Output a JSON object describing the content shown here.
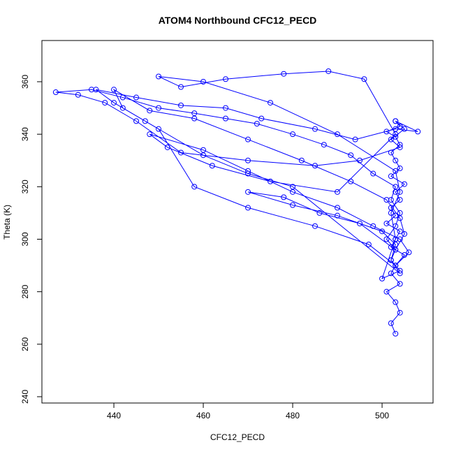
{
  "chart_data": {
    "type": "line",
    "title": "ATOM4 Northbound CFC12_PECD",
    "x_label": "CFC12_PECD",
    "y_label": "Theta (K)",
    "xlim": [
      423.9,
      511.4
    ],
    "ylim": [
      237.6,
      375.7
    ],
    "xticks": [
      440,
      460,
      480,
      500
    ],
    "yticks": [
      240,
      260,
      280,
      300,
      320,
      340,
      360
    ],
    "series": [
      {
        "color": "#0000ff",
        "x": [
          503,
          502,
          504,
          503,
          501,
          504,
          502,
          503,
          505,
          502,
          503,
          504,
          501,
          503,
          502,
          504,
          503,
          505,
          502,
          504,
          503,
          502,
          504,
          503,
          501,
          504,
          503,
          505,
          502,
          504,
          495,
          485,
          470,
          455,
          445,
          438,
          432,
          427,
          435,
          442,
          450,
          458,
          465,
          472,
          480,
          487,
          493,
          498,
          503,
          502,
          504,
          503,
          501,
          503,
          502,
          504,
          500,
          503,
          502,
          504,
          503,
          490,
          475,
          460,
          450,
          455,
          465,
          478,
          488,
          496,
          503,
          490,
          475,
          462,
          452,
          448,
          460,
          470,
          480,
          490,
          498,
          504,
          506,
          503,
          497,
          485,
          470,
          458,
          450,
          442,
          440,
          448,
          458,
          470,
          482,
          493,
          501,
          504,
          505,
          503,
          495,
          486,
          478,
          470,
          480,
          490,
          500,
          503,
          502,
          504,
          480,
          470,
          460,
          447,
          440,
          436,
          445,
          455,
          465,
          473,
          485,
          494,
          503,
          508,
          503
        ],
        "values": [
          264,
          268,
          272,
          276,
          280,
          283,
          287,
          290,
          294,
          297,
          300,
          303,
          306,
          309,
          312,
          315,
          318,
          321,
          324,
          327,
          330,
          333,
          336,
          339,
          341,
          343,
          345,
          342,
          338,
          335,
          330,
          328,
          330,
          333,
          345,
          352,
          355,
          356,
          357,
          354,
          350,
          348,
          346,
          344,
          340,
          336,
          332,
          325,
          320,
          315,
          310,
          305,
          300,
          296,
          292,
          288,
          285,
          300,
          310,
          318,
          326,
          340,
          352,
          360,
          362,
          358,
          361,
          363,
          364,
          361,
          340,
          318,
          322,
          328,
          335,
          340,
          334,
          326,
          318,
          312,
          305,
          300,
          295,
          290,
          298,
          305,
          312,
          320,
          342,
          350,
          357,
          349,
          346,
          338,
          330,
          322,
          315,
          308,
          302,
          296,
          306,
          310,
          316,
          318,
          313,
          309,
          303,
          298,
          292,
          287,
          320,
          325,
          332,
          345,
          352,
          357,
          354,
          351,
          350,
          346,
          342,
          338,
          342,
          341,
          345
        ]
      }
    ]
  }
}
